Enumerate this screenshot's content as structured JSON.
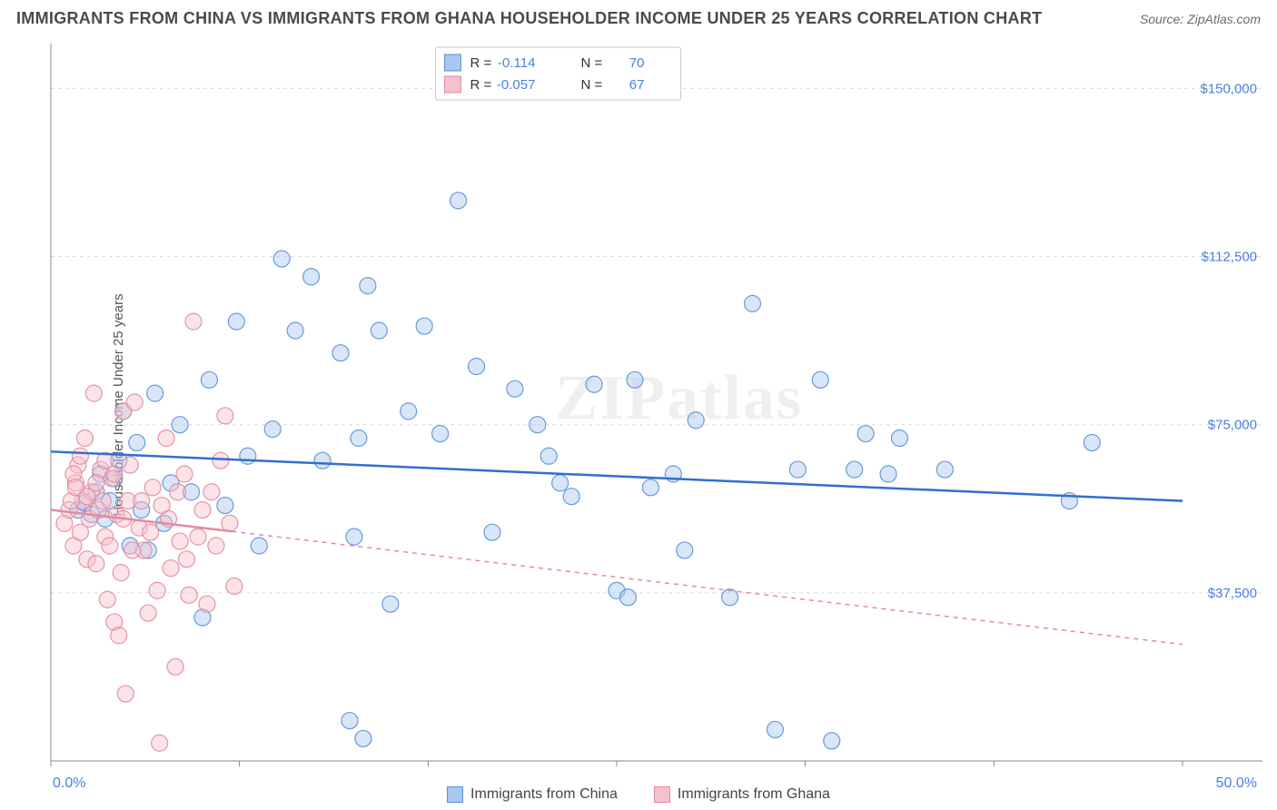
{
  "header": {
    "title": "IMMIGRANTS FROM CHINA VS IMMIGRANTS FROM GHANA HOUSEHOLDER INCOME UNDER 25 YEARS CORRELATION CHART",
    "source": "Source: ZipAtlas.com"
  },
  "chart": {
    "type": "scatter",
    "ylabel": "Householder Income Under 25 years",
    "watermark": "ZIPatlas",
    "background_color": "#ffffff",
    "grid_color": "#dcdcdc",
    "axis_color": "#888888",
    "label_color": "#4a7fe0",
    "xlim": [
      0,
      50
    ],
    "ylim": [
      0,
      160000
    ],
    "x_tick_positions": [
      0,
      8.33,
      16.67,
      25,
      33.33,
      41.67,
      50
    ],
    "x_tick_labels": [
      "0.0%",
      "",
      "",
      "",
      "",
      "",
      "50.0%"
    ],
    "y_gridlines": [
      37500,
      75000,
      112500,
      150000
    ],
    "y_tick_labels": [
      "$37,500",
      "$75,000",
      "$112,500",
      "$150,000"
    ],
    "marker_radius": 9,
    "marker_opacity": 0.45,
    "line_width": 2.5,
    "series": [
      {
        "name": "Immigrants from China",
        "swatch_fill": "#a9c7ef",
        "swatch_stroke": "#5a8fd6",
        "marker_fill": "#a9c7ef",
        "marker_stroke": "#5a8fd6",
        "line_color": "#2f6fd0",
        "R": "-0.114",
        "N": "70",
        "regression": {
          "x1": 0,
          "y1": 69000,
          "x2": 50,
          "y2": 58000,
          "dash": "none"
        },
        "points": [
          [
            1.2,
            56000
          ],
          [
            1.5,
            57500
          ],
          [
            1.8,
            55000
          ],
          [
            2.0,
            60000
          ],
          [
            2.2,
            64000
          ],
          [
            2.4,
            54000
          ],
          [
            2.6,
            58000
          ],
          [
            2.8,
            63000
          ],
          [
            3.0,
            67000
          ],
          [
            3.2,
            78000
          ],
          [
            3.5,
            48000
          ],
          [
            3.8,
            71000
          ],
          [
            4.0,
            56000
          ],
          [
            4.3,
            47000
          ],
          [
            4.6,
            82000
          ],
          [
            5.0,
            53000
          ],
          [
            5.3,
            62000
          ],
          [
            5.7,
            75000
          ],
          [
            6.2,
            60000
          ],
          [
            6.7,
            32000
          ],
          [
            7.0,
            85000
          ],
          [
            7.7,
            57000
          ],
          [
            8.2,
            98000
          ],
          [
            8.7,
            68000
          ],
          [
            9.2,
            48000
          ],
          [
            9.8,
            74000
          ],
          [
            10.2,
            112000
          ],
          [
            10.8,
            96000
          ],
          [
            11.5,
            108000
          ],
          [
            12.0,
            67000
          ],
          [
            12.8,
            91000
          ],
          [
            13.2,
            9000
          ],
          [
            13.4,
            50000
          ],
          [
            13.6,
            72000
          ],
          [
            13.8,
            5000
          ],
          [
            14.0,
            106000
          ],
          [
            14.5,
            96000
          ],
          [
            15.0,
            35000
          ],
          [
            15.8,
            78000
          ],
          [
            16.5,
            97000
          ],
          [
            17.2,
            73000
          ],
          [
            18.0,
            125000
          ],
          [
            18.8,
            88000
          ],
          [
            19.5,
            51000
          ],
          [
            20.5,
            83000
          ],
          [
            21.5,
            75000
          ],
          [
            22.0,
            68000
          ],
          [
            22.5,
            62000
          ],
          [
            23.0,
            59000
          ],
          [
            24.0,
            84000
          ],
          [
            25.0,
            38000
          ],
          [
            25.5,
            36500
          ],
          [
            25.8,
            85000
          ],
          [
            26.5,
            61000
          ],
          [
            27.5,
            64000
          ],
          [
            28.0,
            47000
          ],
          [
            28.5,
            76000
          ],
          [
            30.0,
            36500
          ],
          [
            31.0,
            102000
          ],
          [
            32.0,
            7000
          ],
          [
            33.0,
            65000
          ],
          [
            34.0,
            85000
          ],
          [
            35.5,
            65000
          ],
          [
            36.0,
            73000
          ],
          [
            37.0,
            64000
          ],
          [
            37.5,
            72000
          ],
          [
            39.5,
            65000
          ],
          [
            34.5,
            4500
          ],
          [
            45.0,
            58000
          ],
          [
            46.0,
            71000
          ]
        ]
      },
      {
        "name": "Immigrants from Ghana",
        "swatch_fill": "#f6c0cc",
        "swatch_stroke": "#e08aa0",
        "marker_fill": "#f6c0cc",
        "marker_stroke": "#e08aa0",
        "line_color": "#e68aa0",
        "R": "-0.057",
        "N": "67",
        "regression": {
          "x1": 0,
          "y1": 56000,
          "x2": 50,
          "y2": 26000,
          "dash": "5 5",
          "solid_until": 8
        },
        "points": [
          [
            0.6,
            53000
          ],
          [
            0.8,
            56000
          ],
          [
            1.0,
            48000
          ],
          [
            1.1,
            62000
          ],
          [
            1.2,
            66000
          ],
          [
            1.3,
            51000
          ],
          [
            1.4,
            58000
          ],
          [
            1.5,
            72000
          ],
          [
            1.6,
            45000
          ],
          [
            1.7,
            54000
          ],
          [
            1.8,
            60000
          ],
          [
            1.9,
            82000
          ],
          [
            2.0,
            44000
          ],
          [
            2.1,
            56000
          ],
          [
            2.2,
            65000
          ],
          [
            2.3,
            58000
          ],
          [
            2.4,
            50000
          ],
          [
            2.5,
            36000
          ],
          [
            2.6,
            48000
          ],
          [
            2.7,
            63000
          ],
          [
            2.8,
            31000
          ],
          [
            2.9,
            55000
          ],
          [
            3.0,
            28000
          ],
          [
            3.1,
            42000
          ],
          [
            3.2,
            78000
          ],
          [
            3.3,
            15000
          ],
          [
            3.4,
            58000
          ],
          [
            3.5,
            66000
          ],
          [
            3.7,
            80000
          ],
          [
            3.9,
            52000
          ],
          [
            4.1,
            47000
          ],
          [
            4.3,
            33000
          ],
          [
            4.5,
            61000
          ],
          [
            4.7,
            38000
          ],
          [
            4.9,
            57000
          ],
          [
            5.1,
            72000
          ],
          [
            5.3,
            43000
          ],
          [
            5.5,
            21000
          ],
          [
            5.7,
            49000
          ],
          [
            5.9,
            64000
          ],
          [
            6.1,
            37000
          ],
          [
            6.3,
            98000
          ],
          [
            6.5,
            50000
          ],
          [
            6.7,
            56000
          ],
          [
            6.9,
            35000
          ],
          [
            7.1,
            60000
          ],
          [
            7.3,
            48000
          ],
          [
            7.5,
            67000
          ],
          [
            7.7,
            77000
          ],
          [
            7.9,
            53000
          ],
          [
            8.1,
            39000
          ],
          [
            1.0,
            64000
          ],
          [
            1.3,
            68000
          ],
          [
            0.9,
            58000
          ],
          [
            1.1,
            61000
          ],
          [
            1.6,
            59000
          ],
          [
            2.0,
            62000
          ],
          [
            2.4,
            67000
          ],
          [
            2.8,
            64000
          ],
          [
            3.2,
            54000
          ],
          [
            3.6,
            47000
          ],
          [
            4.0,
            58000
          ],
          [
            4.4,
            51000
          ],
          [
            4.8,
            4000
          ],
          [
            5.2,
            54000
          ],
          [
            5.6,
            60000
          ],
          [
            6.0,
            45000
          ]
        ]
      }
    ],
    "bottom_legend": [
      {
        "label": "Immigrants from China",
        "color": "#a9c7ef",
        "stroke": "#5a8fd6"
      },
      {
        "label": "Immigrants from Ghana",
        "color": "#f6c0cc",
        "stroke": "#e08aa0"
      }
    ]
  }
}
